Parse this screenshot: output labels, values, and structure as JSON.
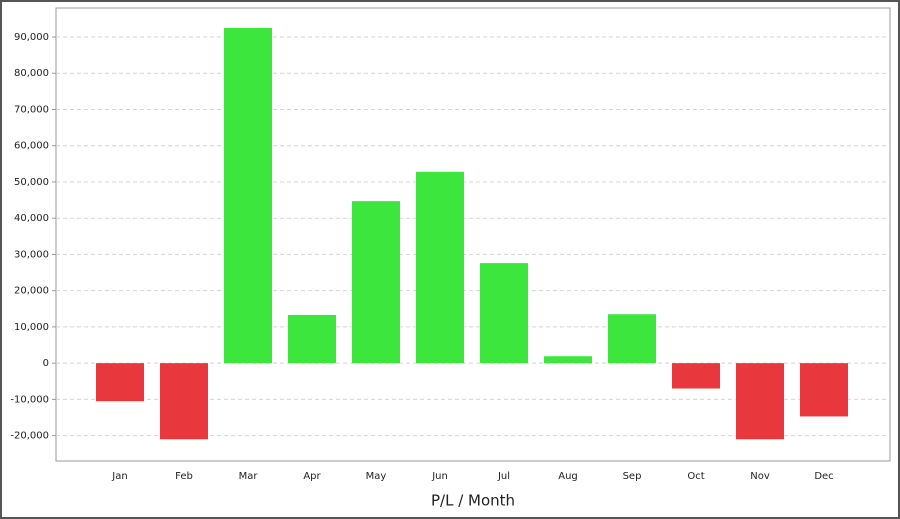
{
  "chart_data": {
    "type": "bar",
    "x_label": "P/L / Month",
    "categories": [
      "Jan",
      "Feb",
      "Mar",
      "Apr",
      "May",
      "Jun",
      "Jul",
      "Aug",
      "Sep",
      "Oct",
      "Nov",
      "Dec"
    ],
    "values": [
      -10500,
      -21000,
      92500,
      13300,
      44700,
      52800,
      27600,
      1900,
      13500,
      -7000,
      -21000,
      -14700
    ],
    "positive_color": "#3de63d",
    "negative_color": "#e8383d",
    "ylim": [
      -27000,
      98000
    ],
    "yticks": [
      {
        "value": -20000,
        "label": "-20,000"
      },
      {
        "value": -10000,
        "label": "-10,000"
      },
      0,
      {
        "value": 10000,
        "label": "10,000"
      },
      {
        "value": 20000,
        "label": "20,000"
      },
      {
        "value": 30000,
        "label": "30,000"
      },
      {
        "value": 40000,
        "label": "40,000"
      },
      {
        "value": 50000,
        "label": "50,000"
      },
      {
        "value": 60000,
        "label": "60,000"
      },
      {
        "value": 70000,
        "label": "70,000"
      },
      {
        "value": 80000,
        "label": "80,000"
      },
      {
        "value": 90000,
        "label": "90,000"
      }
    ],
    "grid": true
  }
}
